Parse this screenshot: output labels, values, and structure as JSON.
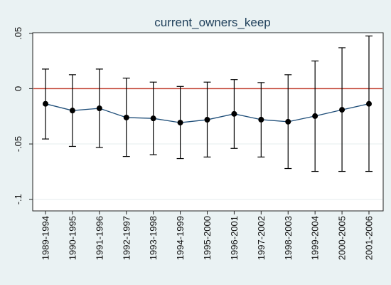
{
  "chart_data": {
    "type": "line",
    "title": "current_owners_keep",
    "xlabel": "",
    "ylabel": "",
    "categories": [
      "1989-1994",
      "1990-1995",
      "1991-1996",
      "1992-1997",
      "1993-1998",
      "1994-1999",
      "1995-2000",
      "1996-2001",
      "1997-2002",
      "1998-2003",
      "1999-2004",
      "2000-2005",
      "2001-2006"
    ],
    "series": [
      {
        "values": [
          -0.0137,
          -0.0198,
          -0.0178,
          -0.0261,
          -0.0269,
          -0.0307,
          -0.0281,
          -0.0228,
          -0.028,
          -0.0299,
          -0.0248,
          -0.0191,
          -0.0137
        ],
        "ci_lower": [
          -0.0455,
          -0.0522,
          -0.0532,
          -0.0613,
          -0.0597,
          -0.0632,
          -0.0618,
          -0.054,
          -0.0618,
          -0.0722,
          -0.0748,
          -0.0748,
          -0.0748
        ],
        "ci_upper": [
          0.0177,
          0.0126,
          0.0177,
          0.0095,
          0.0059,
          0.002,
          0.0059,
          0.0082,
          0.0055,
          0.0126,
          0.025,
          0.037,
          0.0476
        ]
      }
    ],
    "ylim": [
      -0.1,
      0.05
    ],
    "yticks": [
      0.05,
      0,
      -0.05,
      -0.1
    ],
    "ytick_labels": [
      ".05",
      "0",
      "-.05",
      "-.1"
    ],
    "reference_line": 0,
    "grid": true,
    "legend": "none",
    "colors": {
      "plot_bg": "#ffffff",
      "outer_bg": "#eaf2f3",
      "line": "#1f4e79",
      "marker": "#000000",
      "ci": "#000000",
      "reference": "#c0392b",
      "grid": "#e6ecee",
      "title": "#1e3f5a"
    }
  }
}
